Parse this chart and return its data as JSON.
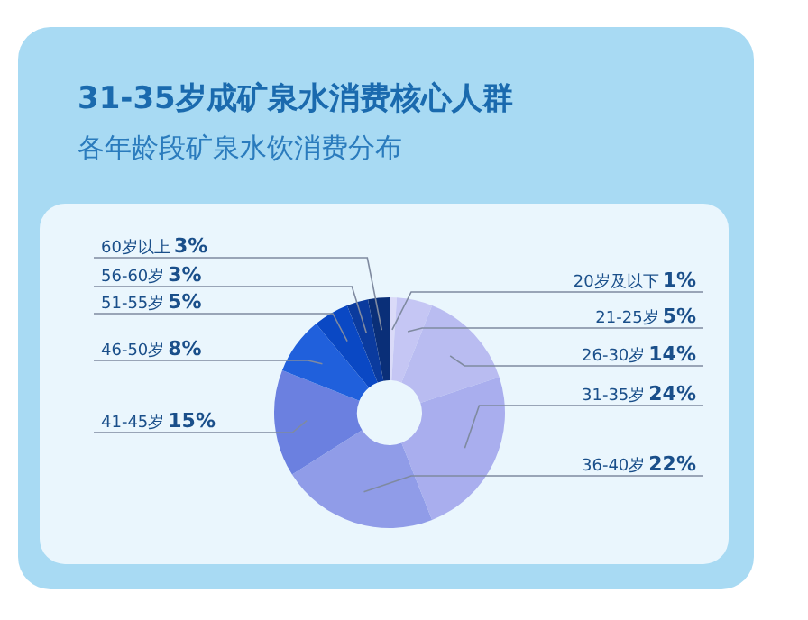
{
  "chart_data": {
    "type": "donut",
    "title": "31-35岁成矿泉水消费核心人群",
    "subtitle": "各年龄段矿泉水饮消费分布",
    "categories": [
      "20岁及以下",
      "21-25岁",
      "26-30岁",
      "31-35岁",
      "36-40岁",
      "41-45岁",
      "46-50岁",
      "51-55岁",
      "56-60岁",
      "60岁以上"
    ],
    "values": [
      1,
      5,
      14,
      24,
      22,
      15,
      8,
      5,
      3,
      3
    ],
    "value_labels": [
      "1%",
      "5%",
      "14%",
      "24%",
      "22%",
      "15%",
      "8%",
      "5%",
      "3%",
      "3%"
    ],
    "colors": [
      "#dadaf8",
      "#c5c6f4",
      "#b9bcf1",
      "#a9aeee",
      "#909ce8",
      "#6b80e0",
      "#2060dc",
      "#0a48c4",
      "#0b3b9e",
      "#0a2f78"
    ]
  }
}
